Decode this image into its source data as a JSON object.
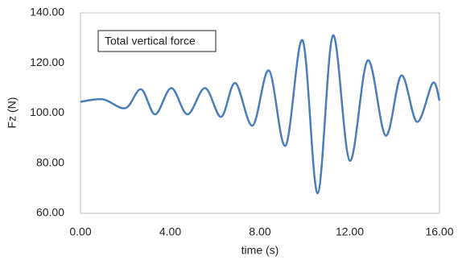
{
  "chart_data": {
    "type": "line",
    "annotation": "Total vertical force",
    "xlabel": "time (s)",
    "ylabel": "Fz (N)",
    "xlim": [
      0,
      16
    ],
    "ylim": [
      60,
      140
    ],
    "xticks": [
      {
        "value": 0,
        "label": "0.00"
      },
      {
        "value": 4,
        "label": "4.00"
      },
      {
        "value": 8,
        "label": "8.00"
      },
      {
        "value": 12,
        "label": "12.00"
      },
      {
        "value": 16,
        "label": "16.00"
      }
    ],
    "yticks": [
      {
        "value": 60,
        "label": "60.00"
      },
      {
        "value": 80,
        "label": "80.00"
      },
      {
        "value": 100,
        "label": "100.00"
      },
      {
        "value": 120,
        "label": "120.00"
      },
      {
        "value": 140,
        "label": "140.00"
      }
    ],
    "grid": false,
    "x": [
      0,
      1,
      2,
      2.7,
      3.33,
      4.05,
      4.77,
      5.55,
      6.27,
      6.9,
      7.67,
      8.4,
      9.14,
      9.9,
      10.57,
      11.25,
      12.0,
      12.8,
      13.6,
      14.3,
      15.0,
      15.7,
      16
    ],
    "series": [
      {
        "color": "#4a7ebb",
        "values": [
          104.5,
          105.5,
          102,
          109.5,
          99.5,
          110,
          99.5,
          110,
          98.5,
          112,
          95,
          117,
          87,
          129,
          68,
          131,
          81,
          121,
          91,
          115,
          96.5,
          112,
          105
        ]
      }
    ]
  }
}
